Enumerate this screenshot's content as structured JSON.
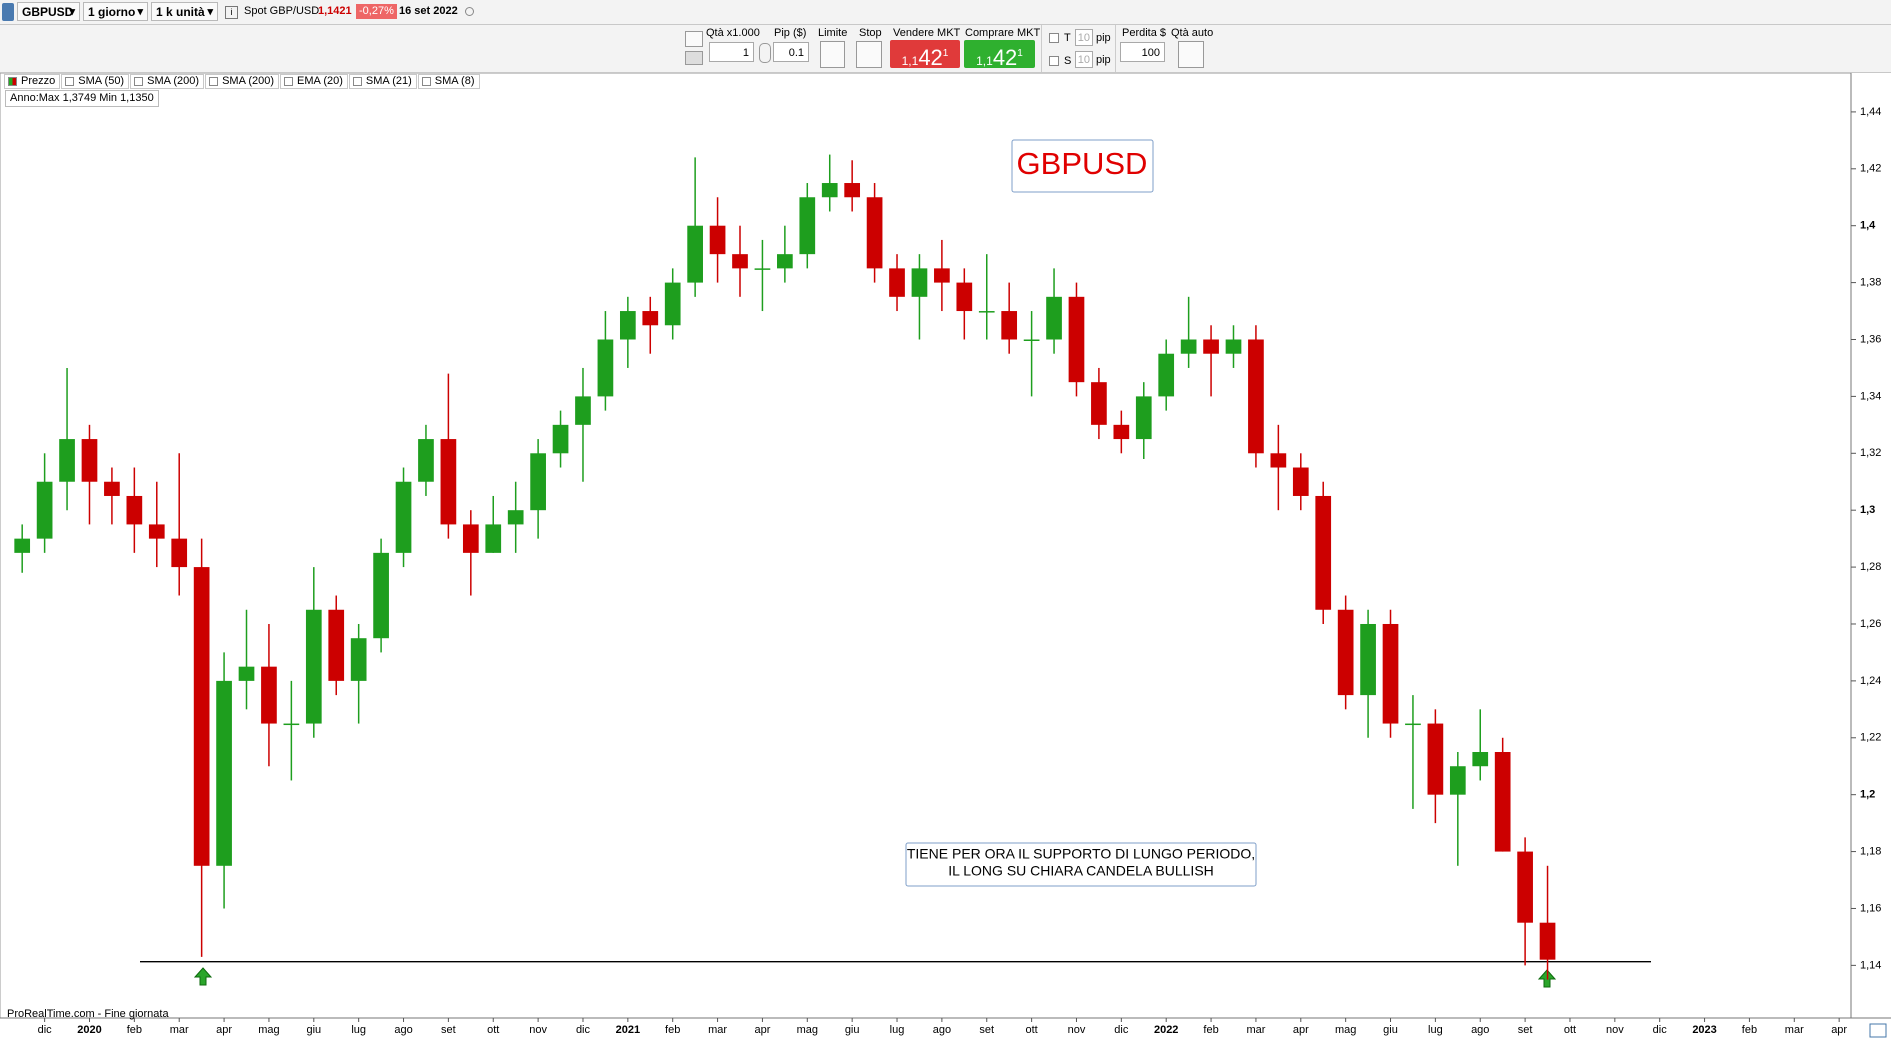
{
  "topbar": {
    "symbol": "GBPUSD",
    "period": "1 giorno",
    "units": "1 k unità",
    "spot_label": "Spot GBP/USD",
    "spot_price": "1,1421",
    "change": "-0,27%",
    "date": "16 set 2022"
  },
  "order_panel": {
    "qty_label": "Qtà x1.000",
    "qty": "1",
    "pip_label": "Pip ($)",
    "pip": "0.1",
    "limit_label": "Limite",
    "stop_label": "Stop",
    "sell_label": "Vendere MKT",
    "sell_price": {
      "lead": "1,1",
      "big": "42",
      "sup": "1"
    },
    "buy_label": "Comprare MKT",
    "buy_price": {
      "lead": "1,1",
      "big": "42",
      "sup": "1"
    },
    "t_label": "T",
    "t_value": "10",
    "t_unit": "pip",
    "s_label": "S",
    "s_value": "10",
    "s_unit": "pip",
    "loss_label": "Perdita $",
    "loss": "100",
    "auto_label": "Qtà auto"
  },
  "indicators": [
    "Prezzo",
    "SMA (50)",
    "SMA (200)",
    "SMA (200)",
    "EMA (20)",
    "SMA (21)",
    "SMA (8)"
  ],
  "chart_data": {
    "type": "candlestick",
    "title": "GBPUSD",
    "annotation": [
      "TIENE PER ORA IL SUPPORTO DI LUNGO PERIODO,",
      "IL LONG SU CHIARA CANDELA BULLISH"
    ],
    "info": "Anno:Max 1,3749 Min 1,1350",
    "footer": "ProRealTime.com - Fine giornata",
    "categories": [
      null,
      "dic",
      null,
      "2020",
      null,
      "feb",
      null,
      "mar",
      null,
      "apr",
      null,
      "mag",
      null,
      "giu",
      null,
      "lug",
      null,
      "ago",
      null,
      "set",
      null,
      "ott",
      null,
      "nov",
      null,
      "dic",
      null,
      "2021",
      null,
      "feb",
      null,
      "mar",
      null,
      "apr",
      null,
      "mag",
      null,
      "giu",
      null,
      "lug",
      null,
      "ago",
      null,
      "set",
      null,
      "ott",
      null,
      "nov",
      null,
      "dic",
      null,
      "2022",
      null,
      "feb",
      null,
      "mar",
      null,
      "apr",
      null,
      "mag",
      null,
      "giu",
      null,
      "lug",
      null,
      "ago",
      null,
      "set",
      null,
      "ott",
      null,
      "nov",
      null,
      "dic",
      null,
      "2023",
      null,
      "feb",
      null,
      "mar",
      null,
      "apr"
    ],
    "open": [
      1.285,
      1.29,
      1.31,
      1.325,
      1.31,
      1.305,
      1.295,
      1.29,
      1.28,
      1.175,
      1.24,
      1.245,
      1.225,
      1.225,
      1.265,
      1.24,
      1.255,
      1.285,
      1.31,
      1.325,
      1.295,
      1.285,
      1.295,
      1.3,
      1.32,
      1.33,
      1.34,
      1.36,
      1.37,
      1.365,
      1.38,
      1.4,
      1.39,
      1.385,
      1.385,
      1.39,
      1.41,
      1.415,
      1.41,
      1.385,
      1.375,
      1.385,
      1.38,
      1.37,
      1.37,
      1.36,
      1.36,
      1.375,
      1.345,
      1.33,
      1.325,
      1.34,
      1.355,
      1.36,
      1.355,
      1.36,
      1.32,
      1.315,
      1.305,
      1.265,
      1.235,
      1.26,
      1.225,
      1.225,
      1.2,
      1.21,
      1.215,
      1.18,
      1.155,
      null,
      null,
      null,
      null,
      null,
      null,
      null,
      null,
      null,
      null,
      null,
      null,
      null
    ],
    "high": [
      1.295,
      1.32,
      1.35,
      1.33,
      1.315,
      1.315,
      1.31,
      1.32,
      1.29,
      1.25,
      1.265,
      1.26,
      1.24,
      1.28,
      1.27,
      1.26,
      1.29,
      1.315,
      1.33,
      1.348,
      1.3,
      1.305,
      1.31,
      1.325,
      1.335,
      1.35,
      1.37,
      1.375,
      1.375,
      1.385,
      1.424,
      1.41,
      1.4,
      1.395,
      1.4,
      1.415,
      1.425,
      1.423,
      1.415,
      1.39,
      1.39,
      1.395,
      1.385,
      1.39,
      1.38,
      1.37,
      1.385,
      1.38,
      1.35,
      1.335,
      1.345,
      1.36,
      1.375,
      1.365,
      1.365,
      1.365,
      1.33,
      1.32,
      1.31,
      1.27,
      1.265,
      1.265,
      1.235,
      1.23,
      1.215,
      1.23,
      1.22,
      1.185,
      1.175,
      null,
      null,
      null,
      null,
      null,
      null,
      null,
      null,
      null,
      null,
      null,
      null,
      null
    ],
    "low": [
      1.278,
      1.285,
      1.3,
      1.295,
      1.295,
      1.285,
      1.28,
      1.27,
      1.143,
      1.16,
      1.23,
      1.21,
      1.205,
      1.22,
      1.235,
      1.225,
      1.25,
      1.28,
      1.305,
      1.29,
      1.27,
      1.285,
      1.285,
      1.29,
      1.315,
      1.31,
      1.335,
      1.35,
      1.355,
      1.36,
      1.375,
      1.38,
      1.375,
      1.37,
      1.38,
      1.385,
      1.405,
      1.405,
      1.38,
      1.37,
      1.36,
      1.37,
      1.36,
      1.36,
      1.355,
      1.34,
      1.355,
      1.34,
      1.325,
      1.32,
      1.318,
      1.335,
      1.35,
      1.34,
      1.35,
      1.315,
      1.3,
      1.3,
      1.26,
      1.23,
      1.22,
      1.22,
      1.195,
      1.19,
      1.175,
      1.205,
      1.18,
      1.14,
      1.135,
      null,
      null,
      null,
      null,
      null,
      null,
      null,
      null,
      null,
      null,
      null,
      null,
      null
    ],
    "close": [
      1.29,
      1.31,
      1.325,
      1.31,
      1.305,
      1.295,
      1.29,
      1.28,
      1.175,
      1.24,
      1.245,
      1.225,
      1.225,
      1.265,
      1.24,
      1.255,
      1.285,
      1.31,
      1.325,
      1.295,
      1.285,
      1.295,
      1.3,
      1.32,
      1.33,
      1.34,
      1.36,
      1.37,
      1.365,
      1.38,
      1.4,
      1.39,
      1.385,
      1.385,
      1.39,
      1.41,
      1.415,
      1.41,
      1.385,
      1.375,
      1.385,
      1.38,
      1.37,
      1.37,
      1.36,
      1.36,
      1.375,
      1.345,
      1.33,
      1.325,
      1.34,
      1.355,
      1.36,
      1.355,
      1.36,
      1.32,
      1.315,
      1.305,
      1.265,
      1.235,
      1.26,
      1.225,
      1.225,
      1.2,
      1.21,
      1.215,
      1.18,
      1.155,
      1.142,
      null,
      null,
      null,
      null,
      null,
      null,
      null,
      null,
      null,
      null,
      null,
      null,
      null
    ],
    "up_color": "#1e9e1e",
    "down_color": "#cc0000",
    "support_level": 1.1413,
    "ylim": [
      1.1215,
      1.4535
    ],
    "yticks": [
      {
        "value": 1.14,
        "label": "1,14"
      },
      {
        "value": 1.16,
        "label": "1,16"
      },
      {
        "value": 1.18,
        "label": "1,18"
      },
      {
        "value": 1.2,
        "label": "1,2"
      },
      {
        "value": 1.22,
        "label": "1,22"
      },
      {
        "value": 1.24,
        "label": "1,24"
      },
      {
        "value": 1.26,
        "label": "1,26"
      },
      {
        "value": 1.28,
        "label": "1,28"
      },
      {
        "value": 1.3,
        "label": "1,3"
      },
      {
        "value": 1.32,
        "label": "1,32"
      },
      {
        "value": 1.34,
        "label": "1,34"
      },
      {
        "value": 1.36,
        "label": "1,36"
      },
      {
        "value": 1.38,
        "label": "1,38"
      },
      {
        "value": 1.4,
        "label": "1,4"
      },
      {
        "value": 1.42,
        "label": "1,42"
      },
      {
        "value": 1.44,
        "label": "1,44"
      }
    ]
  }
}
